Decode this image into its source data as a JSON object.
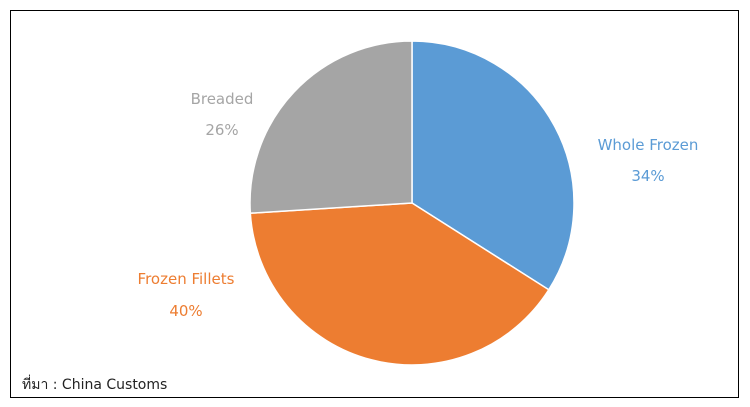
{
  "chart_data": {
    "type": "pie",
    "slices": [
      {
        "label": "Whole Frozen",
        "value": 34,
        "display": "34%",
        "color": "#5b9bd5"
      },
      {
        "label": "Frozen Fillets",
        "value": 40,
        "display": "40%",
        "color": "#ed7d31"
      },
      {
        "label": "Breaded",
        "value": 26,
        "display": "26%",
        "color": "#a5a5a5"
      }
    ],
    "start_angle_deg": 0,
    "direction": "clockwise",
    "legend": "none",
    "title": "",
    "source": "ที่มา : China Customs"
  }
}
